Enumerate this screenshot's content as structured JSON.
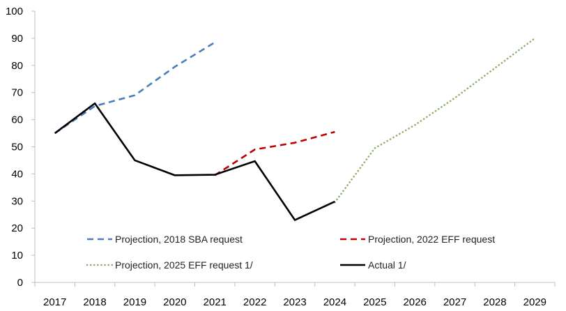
{
  "chart_data": {
    "type": "line",
    "title": "",
    "xlabel": "",
    "ylabel": "",
    "categories": [
      "2017",
      "2018",
      "2019",
      "2020",
      "2021",
      "2022",
      "2023",
      "2024",
      "2025",
      "2026",
      "2027",
      "2028",
      "2029"
    ],
    "ylim": [
      0,
      100
    ],
    "yticks": [
      0,
      10,
      20,
      30,
      40,
      50,
      60,
      70,
      80,
      90,
      100
    ],
    "grid": false,
    "legend_position": "bottom",
    "series": [
      {
        "name": "Projection, 2018 SBA request",
        "color": "#4a7ebb",
        "style": "dash",
        "points": [
          [
            0,
            55
          ],
          [
            1,
            65
          ],
          [
            2,
            69
          ],
          [
            3,
            79.5
          ],
          [
            4,
            88.5
          ]
        ]
      },
      {
        "name": "Projection, 2022 EFF request",
        "color": "#c00000",
        "style": "dash",
        "points": [
          [
            4,
            39.5
          ],
          [
            5,
            49
          ],
          [
            6,
            51.5
          ],
          [
            7,
            55.5
          ]
        ]
      },
      {
        "name": "Projection, 2025 EFF request 1/",
        "color": "#8faf6a",
        "style": "dot",
        "points": [
          [
            7,
            29.5
          ],
          [
            8,
            49.5
          ],
          [
            9,
            58
          ],
          [
            10,
            68
          ],
          [
            11,
            79
          ],
          [
            12,
            90
          ]
        ]
      },
      {
        "name": "Actual 1/",
        "color": "#000000",
        "style": "solid",
        "points": [
          [
            0,
            55
          ],
          [
            1,
            66
          ],
          [
            2,
            45
          ],
          [
            3,
            39.5
          ],
          [
            4,
            39.7
          ],
          [
            5,
            44.7
          ],
          [
            6,
            23
          ],
          [
            7,
            29.8
          ]
        ]
      }
    ]
  }
}
